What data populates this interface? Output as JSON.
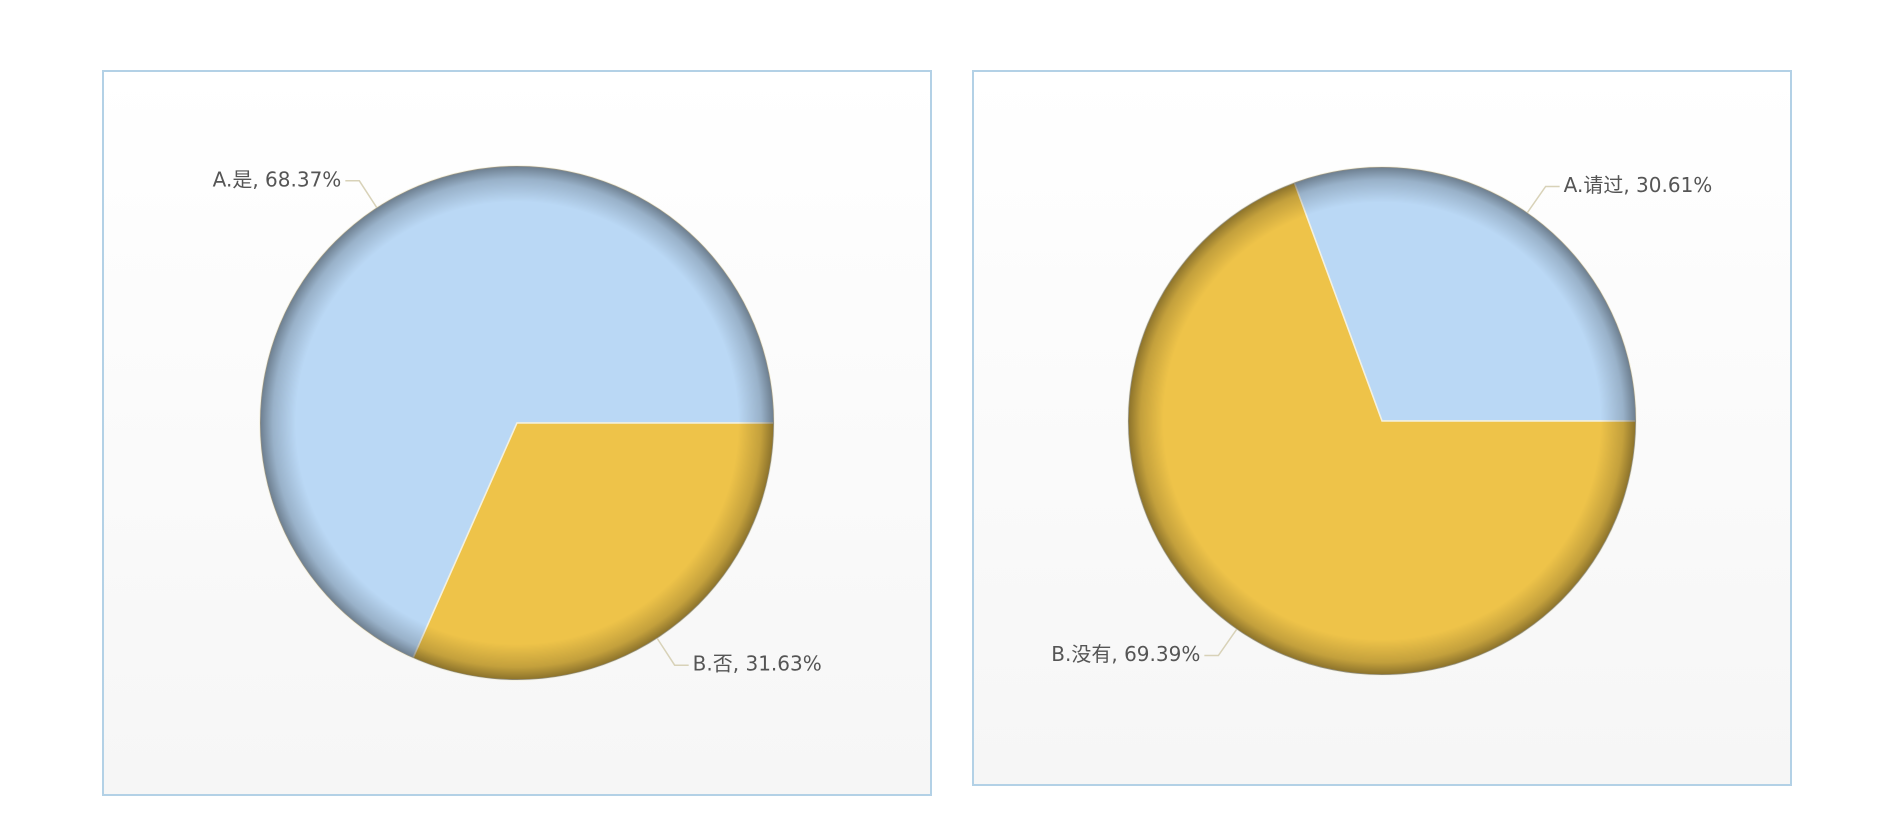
{
  "chart_data": [
    {
      "type": "pie",
      "values": [
        68.37,
        31.63
      ],
      "value_labels": [
        "A.是, 68.37%",
        "B.否, 31.63%"
      ],
      "colors": [
        "#bad8f5",
        "#eec349"
      ]
    },
    {
      "type": "pie",
      "values": [
        30.61,
        69.39
      ],
      "value_labels": [
        "A.请过, 30.61%",
        "B.没有, 69.39%"
      ],
      "colors": [
        "#bad8f5",
        "#eec349"
      ]
    }
  ]
}
